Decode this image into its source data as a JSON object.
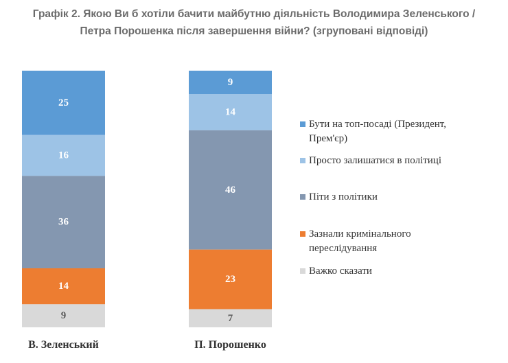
{
  "title": {
    "line1": "Графік 2. Якою Ви б хотіли бачити майбутню діяльність Володимира Зеленського /",
    "line2": "Петра Порошенка після завершення війни? (згруповані відповіді)"
  },
  "chart_data": {
    "type": "bar",
    "stacked": true,
    "categories": [
      "В. Зеленський",
      "П. Порошенко"
    ],
    "series": [
      {
        "name": "Бути на топ-посаді (Президент, Прем'єр)",
        "legend_lines": [
          "Бути на топ-посаді (Президент,",
          "Прем'єр)"
        ],
        "color": "#5b9bd5",
        "label_color": "#ffffff",
        "values": [
          25,
          9
        ]
      },
      {
        "name": "Просто залишатися в політиці",
        "legend_lines": [
          "Просто залишатися в політиці"
        ],
        "color": "#9dc3e6",
        "label_color": "#ffffff",
        "values": [
          16,
          14
        ]
      },
      {
        "name": "Піти з політики",
        "legend_lines": [
          "Піти з політики"
        ],
        "color": "#8497b0",
        "label_color": "#ffffff",
        "values": [
          36,
          46
        ]
      },
      {
        "name": "Зазнали кримінального переслідування",
        "legend_lines": [
          "Зазнали кримінального",
          "переслідування"
        ],
        "color": "#ed7d31",
        "label_color": "#ffffff",
        "values": [
          14,
          23
        ]
      },
      {
        "name": "Важко сказати",
        "legend_lines": [
          "Важко сказати"
        ],
        "color": "#d9d9d9",
        "label_color": "#595959",
        "values": [
          9,
          7
        ]
      }
    ],
    "ylim": [
      0,
      100
    ],
    "legend_position": "right"
  }
}
